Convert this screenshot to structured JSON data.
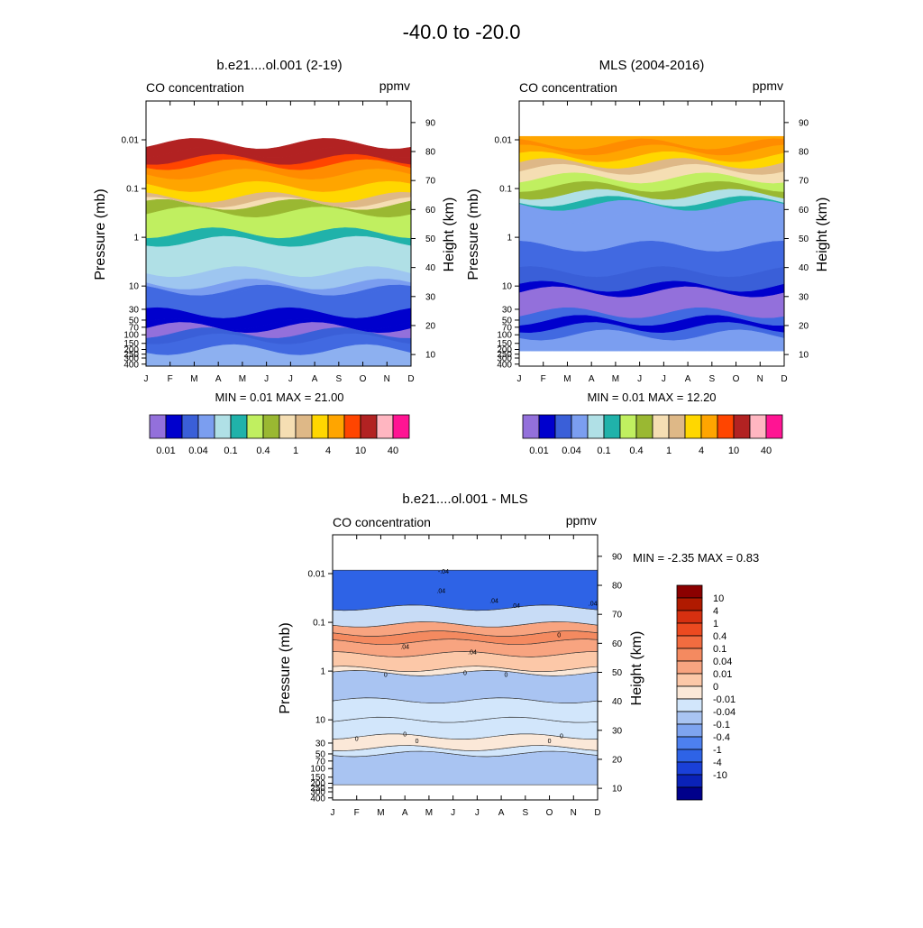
{
  "figure": {
    "title": "-40.0 to -20.0"
  },
  "chart_data": [
    {
      "type": "heatmap",
      "id": "model",
      "title": "b.e21....ol.001 (2-19)",
      "left_label": "CO concentration",
      "units": "ppmv",
      "ylabel": "Pressure (mb)",
      "ylabel_right": "Height (km)",
      "x_ticks": [
        "J",
        "F",
        "M",
        "A",
        "M",
        "J",
        "J",
        "A",
        "S",
        "O",
        "N",
        "D"
      ],
      "pressure_ticks": [
        {
          "p": 0.01,
          "label": "0.01"
        },
        {
          "p": 0.1,
          "label": "0.1"
        },
        {
          "p": 1,
          "label": "1"
        },
        {
          "p": 10,
          "label": "10"
        },
        {
          "p": 30,
          "label": "30"
        },
        {
          "p": 50,
          "label": "50"
        },
        {
          "p": 70,
          "label": "70"
        },
        {
          "p": 100,
          "label": "100"
        },
        {
          "p": 150,
          "label": "150"
        },
        {
          "p": 200,
          "label": "200"
        },
        {
          "p": 250,
          "label": "250"
        },
        {
          "p": 300,
          "label": "300"
        },
        {
          "p": 400,
          "label": "400"
        }
      ],
      "height_ticks": [
        {
          "km": 10,
          "label": "10"
        },
        {
          "km": 20,
          "label": "20"
        },
        {
          "km": 30,
          "label": "30"
        },
        {
          "km": 40,
          "label": "40"
        },
        {
          "km": 50,
          "label": "50"
        },
        {
          "km": 60,
          "label": "60"
        },
        {
          "km": 70,
          "label": "70"
        },
        {
          "km": 80,
          "label": "80"
        },
        {
          "km": 90,
          "label": "90"
        }
      ],
      "pressure_range": [
        0.0016,
        440
      ],
      "bands_pressure": [
        440,
        200,
        120,
        90,
        75,
        70,
        60,
        35,
        13,
        12,
        9,
        5,
        1.2,
        0.8,
        0.45,
        0.3,
        0.24,
        0.21,
        0.19,
        0.15,
        0.09,
        0.05,
        0.032,
        0.025,
        0.018,
        0.012,
        0.009,
        0.0065,
        0.005,
        0.0016
      ],
      "band_colors": [
        "#8db0f0",
        "#4169e1",
        "#3a5fd8",
        "#9370db",
        "#9370db",
        "#0000cd",
        "#0000cd",
        "#4169e1",
        "#4169e1",
        "#7b9ef0",
        "#9ec6f0",
        "#b0e0e6",
        "#20b2aa",
        "#c0ef60",
        "#c0ef60",
        "#9ab832",
        "#9ab832",
        "#f5deb3",
        "#deb887",
        "#ffd700",
        "#ffa500",
        "#ff8c00",
        "#ff4500",
        "#b22222",
        "#b22222"
      ],
      "summary": "MIN =   0.01  MAX =  21.00",
      "min": 0.01,
      "max": 21.0
    },
    {
      "type": "heatmap",
      "id": "mls",
      "title": "MLS (2004-2016)",
      "left_label": "CO concentration",
      "units": "ppmv",
      "ylabel": "Pressure (mb)",
      "ylabel_right": "Height (km)",
      "x_ticks": [
        "J",
        "F",
        "M",
        "A",
        "M",
        "J",
        "J",
        "A",
        "S",
        "O",
        "N",
        "D"
      ],
      "pressure_ticks": [
        {
          "p": 0.01,
          "label": "0.01"
        },
        {
          "p": 0.1,
          "label": "0.1"
        },
        {
          "p": 1,
          "label": "1"
        },
        {
          "p": 10,
          "label": "10"
        },
        {
          "p": 30,
          "label": "30"
        },
        {
          "p": 50,
          "label": "50"
        },
        {
          "p": 70,
          "label": "70"
        },
        {
          "p": 100,
          "label": "100"
        },
        {
          "p": 150,
          "label": "150"
        },
        {
          "p": 200,
          "label": "200"
        },
        {
          "p": 250,
          "label": "250"
        },
        {
          "p": 300,
          "label": "300"
        },
        {
          "p": 400,
          "label": "400"
        }
      ],
      "height_ticks": [
        {
          "km": 10,
          "label": "10"
        },
        {
          "km": 20,
          "label": "20"
        },
        {
          "km": 30,
          "label": "30"
        },
        {
          "km": 40,
          "label": "40"
        },
        {
          "km": 50,
          "label": "50"
        },
        {
          "km": 60,
          "label": "60"
        },
        {
          "km": 70,
          "label": "70"
        },
        {
          "km": 80,
          "label": "80"
        },
        {
          "km": 90,
          "label": "90"
        }
      ],
      "pressure_range": [
        0.0016,
        440
      ],
      "data_range": [
        0.0085,
        215
      ],
      "bands_pressure": [
        215,
        100,
        70,
        50,
        35,
        13,
        10,
        5,
        1.5,
        0.4,
        0.22,
        0.18,
        0.13,
        0.09,
        0.06,
        0.04,
        0.03,
        0.022,
        0.016,
        0.012,
        0.0085
      ],
      "band_colors": [
        "#7b9ef0",
        "#4169e1",
        "#0000cd",
        "#4169e1",
        "#9370db",
        "#0000cd",
        "#3a5fd8",
        "#4169e1",
        "#7b9ef0",
        "#7b9ef0",
        "#20b2aa",
        "#b0e0e6",
        "#9ab832",
        "#c0ef60",
        "#f5deb3",
        "#deb887",
        "#ffd700",
        "#ffa500",
        "#ff8c00",
        "#ffa500"
      ],
      "summary": "MIN =   0.01  MAX =  12.20",
      "min": 0.01,
      "max": 12.2
    },
    {
      "type": "heatmap",
      "id": "diff",
      "title": "b.e21....ol.001 - MLS",
      "left_label": "CO concentration",
      "units": "ppmv",
      "ylabel": "Pressure (mb)",
      "ylabel_right": "Height (km)",
      "x_ticks": [
        "J",
        "F",
        "M",
        "A",
        "M",
        "J",
        "J",
        "A",
        "S",
        "O",
        "N",
        "D"
      ],
      "pressure_ticks": [
        {
          "p": 0.01,
          "label": "0.01"
        },
        {
          "p": 0.1,
          "label": "0.1"
        },
        {
          "p": 1,
          "label": "1"
        },
        {
          "p": 10,
          "label": "10"
        },
        {
          "p": 30,
          "label": "30"
        },
        {
          "p": 50,
          "label": "50"
        },
        {
          "p": 70,
          "label": "70"
        },
        {
          "p": 100,
          "label": "100"
        },
        {
          "p": 150,
          "label": "150"
        },
        {
          "p": 200,
          "label": "200"
        },
        {
          "p": 250,
          "label": "250"
        },
        {
          "p": 300,
          "label": "300"
        },
        {
          "p": 400,
          "label": "400"
        }
      ],
      "height_ticks": [
        {
          "km": 10,
          "label": "10"
        },
        {
          "km": 20,
          "label": "20"
        },
        {
          "km": 30,
          "label": "30"
        },
        {
          "km": 40,
          "label": "40"
        },
        {
          "km": 50,
          "label": "50"
        },
        {
          "km": 60,
          "label": "60"
        },
        {
          "km": 70,
          "label": "70"
        },
        {
          "km": 80,
          "label": "80"
        },
        {
          "km": 90,
          "label": "90"
        }
      ],
      "pressure_range": [
        0.0016,
        440
      ],
      "data_range": [
        0.0085,
        215
      ],
      "bands_pressure": [
        215,
        50,
        38,
        22,
        10,
        4,
        1.1,
        0.9,
        0.45,
        0.25,
        0.17,
        0.11,
        0.05,
        0.0085
      ],
      "band_colors": [
        "#a9c4f2",
        "#d2e6fb",
        "#fbe8d8",
        "#d2e6fb",
        "#d2e6fb",
        "#a9c4f2",
        "#fbe8d8",
        "#fcc8a8",
        "#f8a480",
        "#f48a60",
        "#f8a480",
        "#c8dcf6",
        "#2e63e6"
      ],
      "contour_labels": [
        {
          "label": "0",
          "month": 2.2,
          "p": 1.3
        },
        {
          "label": "0",
          "month": 5.5,
          "p": 1.2
        },
        {
          "label": "0",
          "month": 3.5,
          "p": 30
        },
        {
          "label": "0",
          "month": 9.0,
          "p": 30
        },
        {
          "label": "0",
          "month": 1.0,
          "p": 27
        },
        {
          "label": "0",
          "month": 9.5,
          "p": 24
        },
        {
          "label": "0",
          "month": 3.0,
          "p": 22
        },
        {
          "label": "0",
          "month": 7.2,
          "p": 1.3
        },
        {
          "label": ".04",
          "month": 3.0,
          "p": 0.35
        },
        {
          "label": ".04",
          "month": 5.8,
          "p": 0.45
        },
        {
          "label": ".04",
          "month": 6.7,
          "p": 0.04
        },
        {
          "label": ".04",
          "month": 7.6,
          "p": 0.05
        },
        {
          "label": ".04",
          "month": 10.8,
          "p": 0.045
        },
        {
          "label": ".04",
          "month": 4.5,
          "p": 0.025
        },
        {
          "label": "0",
          "month": 9.4,
          "p": 0.2
        },
        {
          "label": "-.04",
          "month": 4.6,
          "p": 0.01
        }
      ],
      "summary": "MIN =  -2.35  MAX =   0.83",
      "min": -2.35,
      "max": 0.83
    }
  ],
  "colorbar_top": {
    "colors": [
      "#9370db",
      "#0000cd",
      "#3a5fd8",
      "#7b9ef0",
      "#b0e0e6",
      "#20b2aa",
      "#c0ef60",
      "#9ab832",
      "#f5deb3",
      "#deb887",
      "#ffd700",
      "#ffa500",
      "#ff4500",
      "#b22222",
      "#ffb6c1",
      "#ff1493"
    ],
    "labels": [
      "0.01",
      "0.04",
      "0.1",
      "0.4",
      "1",
      "4",
      "10",
      "40"
    ]
  },
  "colorbar_diff": {
    "colors": [
      "#8b0000",
      "#b01a00",
      "#d63010",
      "#ec4a20",
      "#f26c40",
      "#f48a60",
      "#f8a480",
      "#fcc8a8",
      "#fbe8d8",
      "#d2e6fb",
      "#a9c4f2",
      "#7ea4f0",
      "#4d80f0",
      "#2e63e6",
      "#1a40d8",
      "#0a22b8",
      "#00008b"
    ],
    "labels": [
      "10",
      "4",
      "1",
      "0.4",
      "0.1",
      "0.04",
      "0.01",
      "0",
      "-0.01",
      "-0.04",
      "-0.1",
      "-0.4",
      "-1",
      "-4",
      "-10"
    ]
  }
}
